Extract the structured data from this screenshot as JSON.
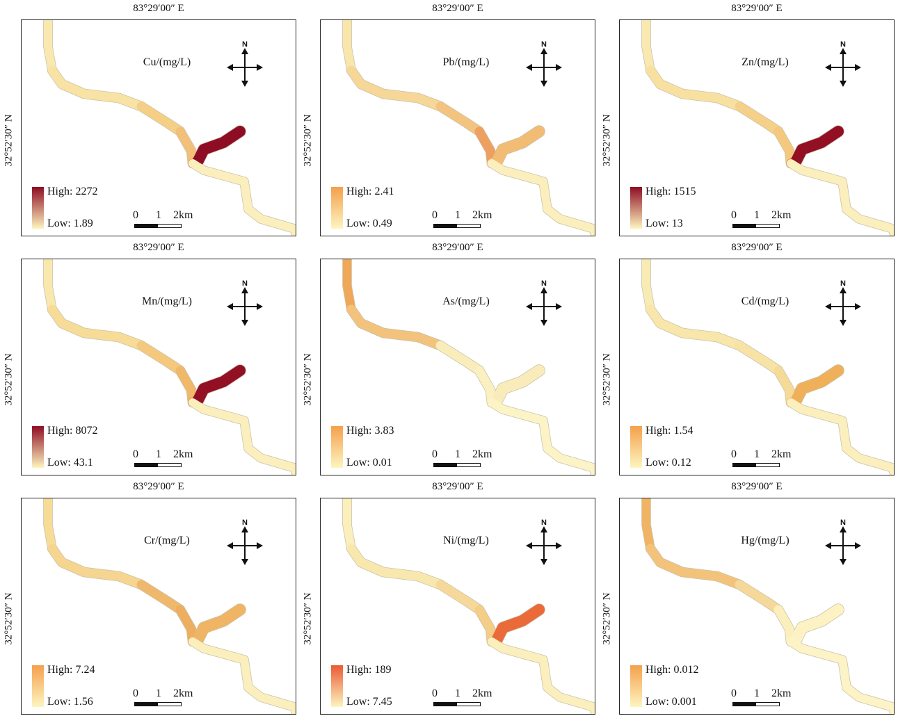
{
  "common": {
    "lon_label": "83°29′00″ E",
    "lat_label": "32°52′30″ N",
    "north_label": "N",
    "scale_labels": [
      "0",
      "1",
      "2km"
    ]
  },
  "panels": [
    {
      "element": "Cu/(mg/L)",
      "high": "High: 2272",
      "low": "Low: 1.89",
      "high_color": "#8e0d24",
      "low_color": "#fdf5c0",
      "segments": [
        "#f9e9b0",
        "#f8e3a4",
        "#f5cf86",
        "#f2c07a",
        "#e68a44",
        "#8e0d24",
        "#fbefbd"
      ]
    },
    {
      "element": "Pb/(mg/L)",
      "high": "High: 2.41",
      "low": "Low: 0.49",
      "high_color": "#f4a04c",
      "low_color": "#fdf5c0",
      "segments": [
        "#f9e6ab",
        "#f6d797",
        "#f3c480",
        "#eda060",
        "#f6cf8a",
        "#f2bc74",
        "#fbefbd"
      ]
    },
    {
      "element": "Zn/(mg/L)",
      "high": "High: 1515",
      "low": "Low: 13",
      "high_color": "#8e0d24",
      "low_color": "#fdf5c0",
      "segments": [
        "#f9e9b0",
        "#f8e1a0",
        "#f5d08a",
        "#f4c97f",
        "#e3703c",
        "#920f24",
        "#fbefbd"
      ]
    },
    {
      "element": "Mn/(mg/L)",
      "high": "High: 8072",
      "low": "Low: 43.1",
      "high_color": "#8e0d24",
      "low_color": "#fdf5c0",
      "segments": [
        "#f9e8ad",
        "#f7dc98",
        "#f4c97e",
        "#f0b86a",
        "#e8803e",
        "#930f24",
        "#fbefbd"
      ]
    },
    {
      "element": "As/(mg/L)",
      "high": "High: 3.83",
      "low": "Low: 0.01",
      "high_color": "#f4a04c",
      "low_color": "#fdf5c0",
      "segments": [
        "#efa858",
        "#f3c27c",
        "#faedbc",
        "#fbf0c0",
        "#fcf3c4",
        "#faecba",
        "#fcf4c6"
      ]
    },
    {
      "element": "Cd/(mg/L)",
      "high": "High: 1.54",
      "low": "Low: 0.12",
      "high_color": "#f4a04c",
      "low_color": "#fdf5c0",
      "segments": [
        "#f9ebb4",
        "#f8e6aa",
        "#f8e3a6",
        "#f6da98",
        "#f1b765",
        "#f0b05a",
        "#fbefbd"
      ]
    },
    {
      "element": "Cr/(mg/L)",
      "high": "High: 7.24",
      "low": "Low: 1.56",
      "high_color": "#f4a04c",
      "low_color": "#fdf5c0",
      "segments": [
        "#f7dc97",
        "#f6d590",
        "#f0b86c",
        "#eeae60",
        "#f0b060",
        "#f0b465",
        "#fbefbd"
      ]
    },
    {
      "element": "Ni/(mg/L)",
      "high": "High: 189",
      "low": "Low: 7.45",
      "high_color": "#ea5a34",
      "low_color": "#fdf5c0",
      "segments": [
        "#fbefbc",
        "#f9e8ae",
        "#f6d99a",
        "#f4cd88",
        "#f2c27c",
        "#ea6a3a",
        "#fbefbd"
      ]
    },
    {
      "element": "Hg/(mg/L)",
      "high": "High: 0.012",
      "low": "Low: 0.001",
      "high_color": "#f4a04c",
      "low_color": "#fdf5c0",
      "segments": [
        "#f1b465",
        "#f3c37c",
        "#f6d89a",
        "#fbefbd",
        "#fcf2c4",
        "#fcf2c4",
        "#fcf3c6"
      ]
    }
  ]
}
